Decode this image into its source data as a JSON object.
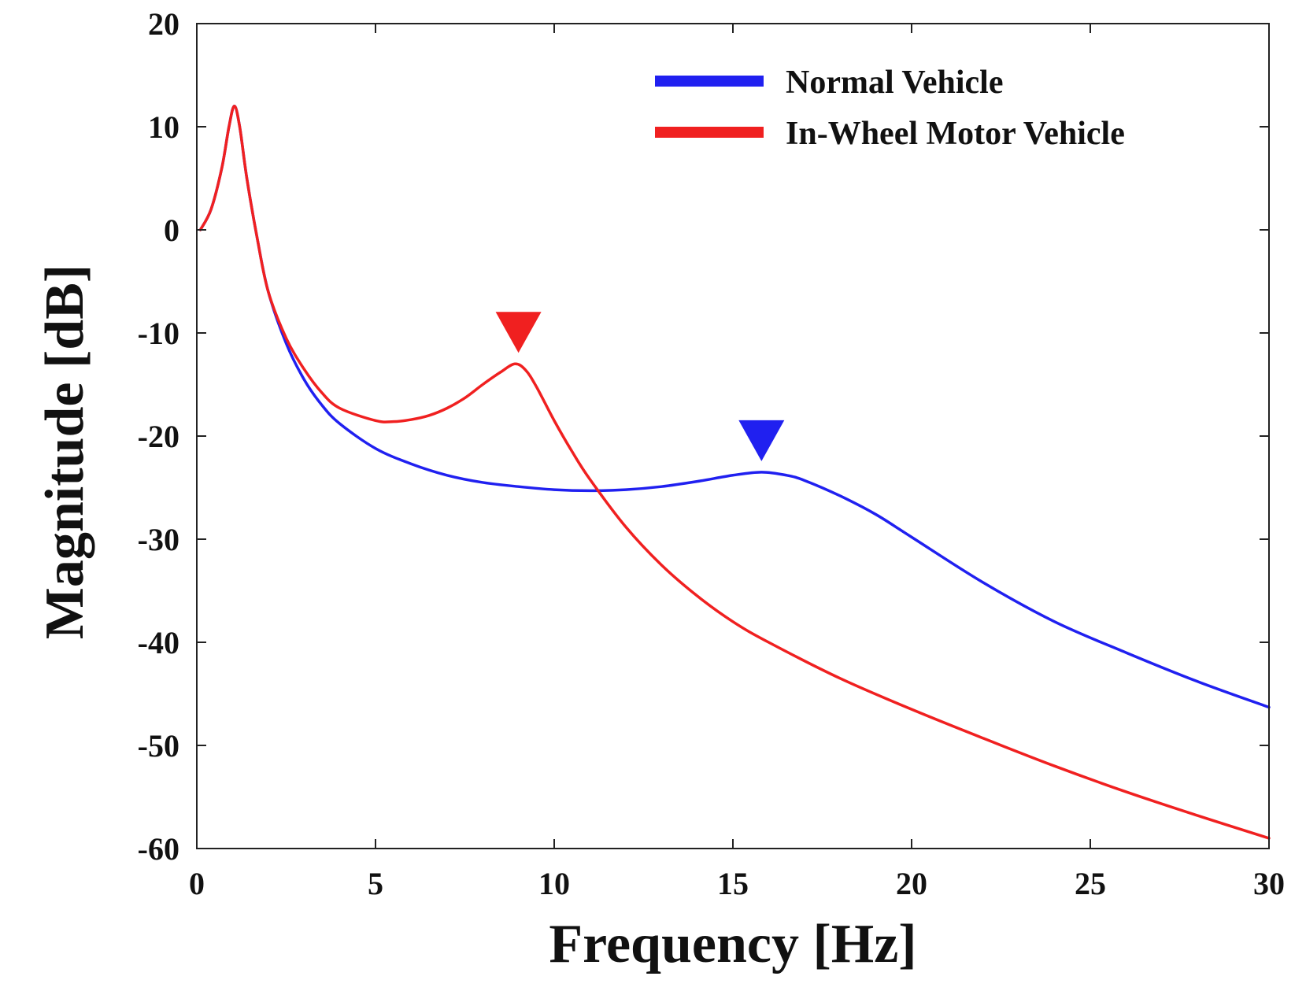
{
  "chart_data": {
    "type": "line",
    "title": "",
    "xlabel": "Frequency [Hz]",
    "ylabel": "Magnitude [dB]",
    "xlim": [
      0,
      30
    ],
    "ylim": [
      -60,
      20
    ],
    "xticks": [
      0,
      5,
      10,
      15,
      20,
      25,
      30
    ],
    "yticks": [
      20,
      10,
      0,
      -10,
      -20,
      -30,
      -40,
      -50,
      -60
    ],
    "xtick_labels": [
      "0",
      "5",
      "10",
      "15",
      "20",
      "25",
      "30"
    ],
    "ytick_labels": [
      "20",
      "10",
      "0",
      "-10",
      "-20",
      "-30",
      "-40",
      "-50",
      "-60"
    ],
    "grid": false,
    "legend_position": "top-right",
    "series": [
      {
        "name": "Normal Vehicle",
        "color": "#2020f0",
        "x": [
          0.1,
          0.4,
          0.7,
          0.9,
          1.05,
          1.2,
          1.4,
          1.7,
          2.0,
          2.5,
          3.0,
          3.5,
          4.0,
          5.0,
          6.0,
          7.0,
          8.0,
          9.0,
          10.0,
          11.0,
          12.0,
          13.0,
          14.0,
          15.0,
          15.8,
          16.5,
          17.0,
          18.0,
          19.0,
          20.0,
          22.0,
          24.0,
          26.0,
          28.0,
          30.0
        ],
        "y": [
          0,
          2,
          6,
          10,
          12,
          10,
          5,
          -1,
          -6,
          -11,
          -14.5,
          -17,
          -18.8,
          -21.2,
          -22.7,
          -23.8,
          -24.5,
          -24.9,
          -25.2,
          -25.3,
          -25.2,
          -24.9,
          -24.4,
          -23.8,
          -23.5,
          -23.8,
          -24.3,
          -25.8,
          -27.6,
          -29.8,
          -34.2,
          -38.0,
          -41.0,
          -43.8,
          -46.3
        ]
      },
      {
        "name": "In-Wheel Motor Vehicle",
        "color": "#f02020",
        "x": [
          0.1,
          0.4,
          0.7,
          0.9,
          1.05,
          1.2,
          1.4,
          1.7,
          2.0,
          2.5,
          3.0,
          3.5,
          4.0,
          5.0,
          5.5,
          6.0,
          6.5,
          7.0,
          7.5,
          8.0,
          8.5,
          8.9,
          9.2,
          9.5,
          10.0,
          10.5,
          11.0,
          12.0,
          13.0,
          14.0,
          15.0,
          16.0,
          18.0,
          20.0,
          22.0,
          24.0,
          26.0,
          28.0,
          30.0
        ],
        "y": [
          0,
          2,
          6,
          10,
          12,
          10,
          5,
          -1,
          -6,
          -10.5,
          -13.5,
          -15.8,
          -17.3,
          -18.5,
          -18.6,
          -18.4,
          -18.0,
          -17.3,
          -16.3,
          -15.0,
          -13.8,
          -13.0,
          -13.6,
          -15.2,
          -18.5,
          -21.5,
          -24.2,
          -28.8,
          -32.5,
          -35.5,
          -38.0,
          -40.0,
          -43.5,
          -46.5,
          -49.3,
          -52.0,
          -54.5,
          -56.8,
          -59.0
        ]
      }
    ],
    "markers": [
      {
        "series": "In-Wheel Motor Vehicle",
        "shape": "down-triangle",
        "x": 9.0,
        "y": -13.0,
        "color": "#f02020"
      },
      {
        "series": "Normal Vehicle",
        "shape": "down-triangle",
        "x": 15.8,
        "y": -23.5,
        "color": "#2020f0"
      }
    ]
  }
}
